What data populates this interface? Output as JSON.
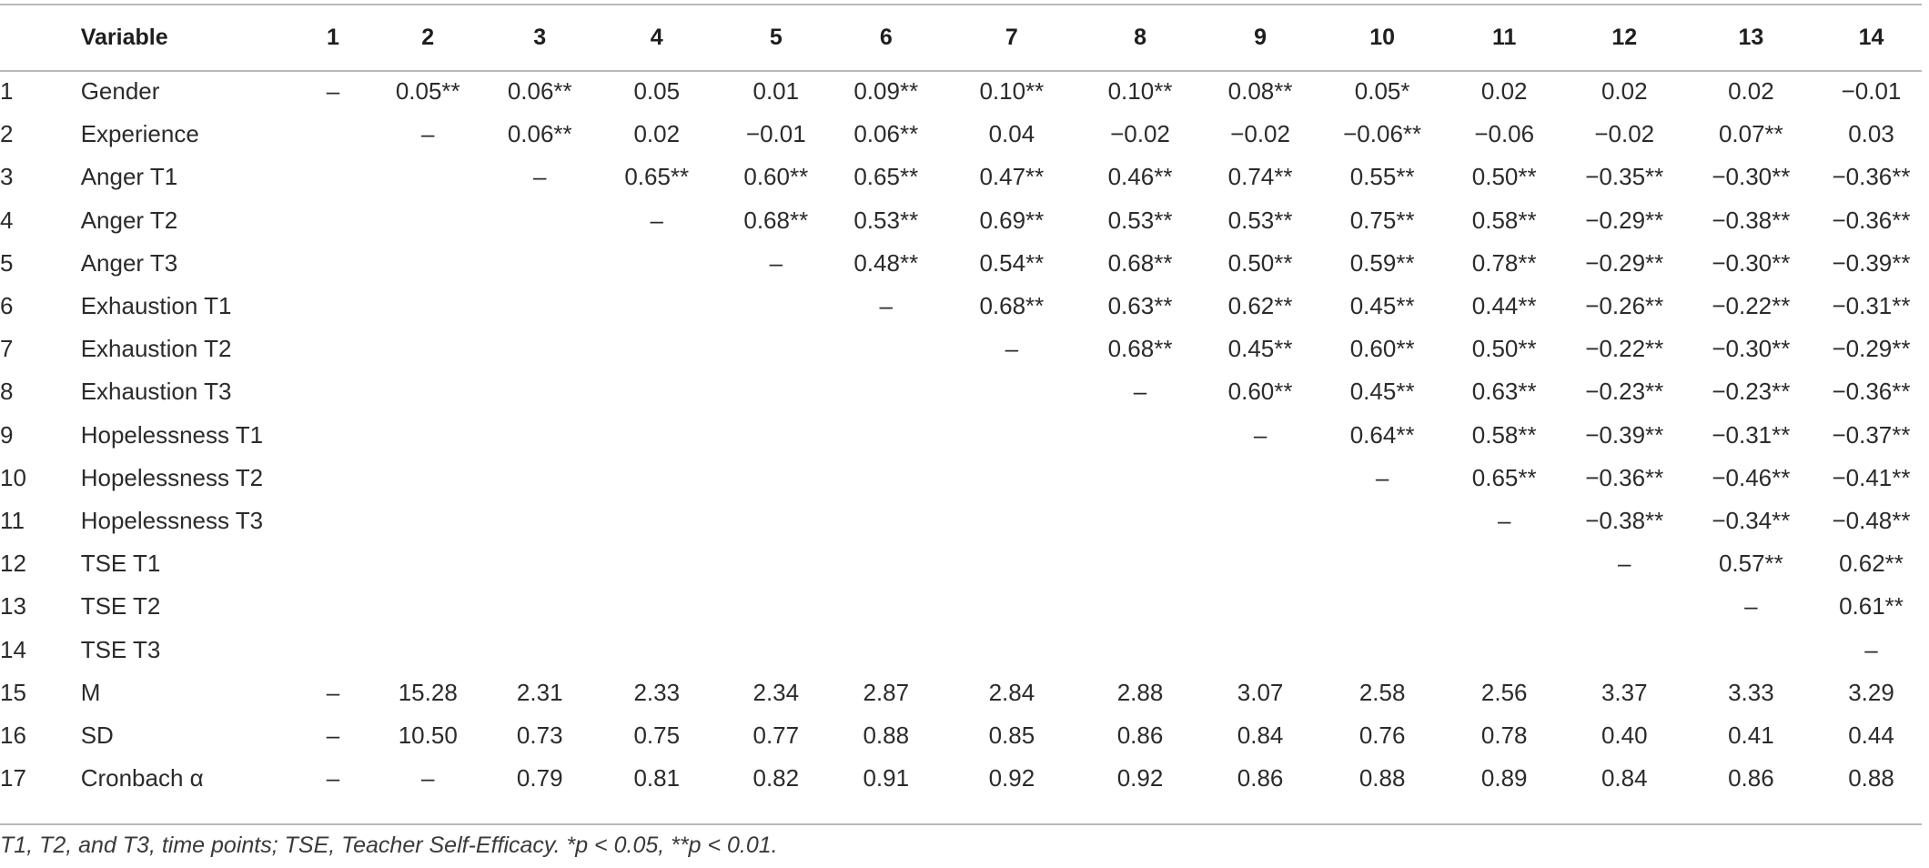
{
  "table": {
    "header": [
      "",
      "Variable",
      "1",
      "2",
      "3",
      "4",
      "5",
      "6",
      "7",
      "8",
      "9",
      "10",
      "11",
      "12",
      "13",
      "14"
    ],
    "rows": [
      [
        "1",
        "Gender",
        "–",
        "0.05**",
        "0.06**",
        "0.05",
        "0.01",
        "0.09**",
        "0.10**",
        "0.10**",
        "0.08**",
        "0.05*",
        "0.02",
        "0.02",
        "0.02",
        "−0.01"
      ],
      [
        "2",
        "Experience",
        "",
        "–",
        "0.06**",
        "0.02",
        "−0.01",
        "0.06**",
        "0.04",
        "−0.02",
        "−0.02",
        "−0.06**",
        "−0.06",
        "−0.02",
        "0.07**",
        "0.03"
      ],
      [
        "3",
        "Anger T1",
        "",
        "",
        "–",
        "0.65**",
        "0.60**",
        "0.65**",
        "0.47**",
        "0.46**",
        "0.74**",
        "0.55**",
        "0.50**",
        "−0.35**",
        "−0.30**",
        "−0.36**"
      ],
      [
        "4",
        "Anger T2",
        "",
        "",
        "",
        "–",
        "0.68**",
        "0.53**",
        "0.69**",
        "0.53**",
        "0.53**",
        "0.75**",
        "0.58**",
        "−0.29**",
        "−0.38**",
        "−0.36**"
      ],
      [
        "5",
        "Anger T3",
        "",
        "",
        "",
        "",
        "–",
        "0.48**",
        "0.54**",
        "0.68**",
        "0.50**",
        "0.59**",
        "0.78**",
        "−0.29**",
        "−0.30**",
        "−0.39**"
      ],
      [
        "6",
        "Exhaustion T1",
        "",
        "",
        "",
        "",
        "",
        "–",
        "0.68**",
        "0.63**",
        "0.62**",
        "0.45**",
        "0.44**",
        "−0.26**",
        "−0.22**",
        "−0.31**"
      ],
      [
        "7",
        "Exhaustion T2",
        "",
        "",
        "",
        "",
        "",
        "",
        "–",
        "0.68**",
        "0.45**",
        "0.60**",
        "0.50**",
        "−0.22**",
        "−0.30**",
        "−0.29**"
      ],
      [
        "8",
        "Exhaustion T3",
        "",
        "",
        "",
        "",
        "",
        "",
        "",
        "–",
        "0.60**",
        "0.45**",
        "0.63**",
        "−0.23**",
        "−0.23**",
        "−0.36**"
      ],
      [
        "9",
        "Hopelessness T1",
        "",
        "",
        "",
        "",
        "",
        "",
        "",
        "",
        "–",
        "0.64**",
        "0.58**",
        "−0.39**",
        "−0.31**",
        "−0.37**"
      ],
      [
        "10",
        "Hopelessness T2",
        "",
        "",
        "",
        "",
        "",
        "",
        "",
        "",
        "",
        "–",
        "0.65**",
        "−0.36**",
        "−0.46**",
        "−0.41**"
      ],
      [
        "11",
        "Hopelessness T3",
        "",
        "",
        "",
        "",
        "",
        "",
        "",
        "",
        "",
        "",
        "–",
        "−0.38**",
        "−0.34**",
        "−0.48**"
      ],
      [
        "12",
        "TSE T1",
        "",
        "",
        "",
        "",
        "",
        "",
        "",
        "",
        "",
        "",
        "",
        "–",
        "0.57**",
        "0.62**"
      ],
      [
        "13",
        "TSE T2",
        "",
        "",
        "",
        "",
        "",
        "",
        "",
        "",
        "",
        "",
        "",
        "",
        "–",
        "0.61**"
      ],
      [
        "14",
        "TSE T3",
        "",
        "",
        "",
        "",
        "",
        "",
        "",
        "",
        "",
        "",
        "",
        "",
        "",
        "–"
      ],
      [
        "15",
        "M",
        "–",
        "15.28",
        "2.31",
        "2.33",
        "2.34",
        "2.87",
        "2.84",
        "2.88",
        "3.07",
        "2.58",
        "2.56",
        "3.37",
        "3.33",
        "3.29"
      ],
      [
        "16",
        "SD",
        "–",
        "10.50",
        "0.73",
        "0.75",
        "0.77",
        "0.88",
        "0.85",
        "0.86",
        "0.84",
        "0.76",
        "0.78",
        "0.40",
        "0.41",
        "0.44"
      ],
      [
        "17",
        "Cronbach α",
        "–",
        "–",
        "0.79",
        "0.81",
        "0.82",
        "0.91",
        "0.92",
        "0.92",
        "0.86",
        "0.88",
        "0.89",
        "0.84",
        "0.86",
        "0.88"
      ]
    ]
  },
  "note": "T1, T2, and T3, time points; TSE, Teacher Self-Efficacy. *p < 0.05, **p < 0.01."
}
